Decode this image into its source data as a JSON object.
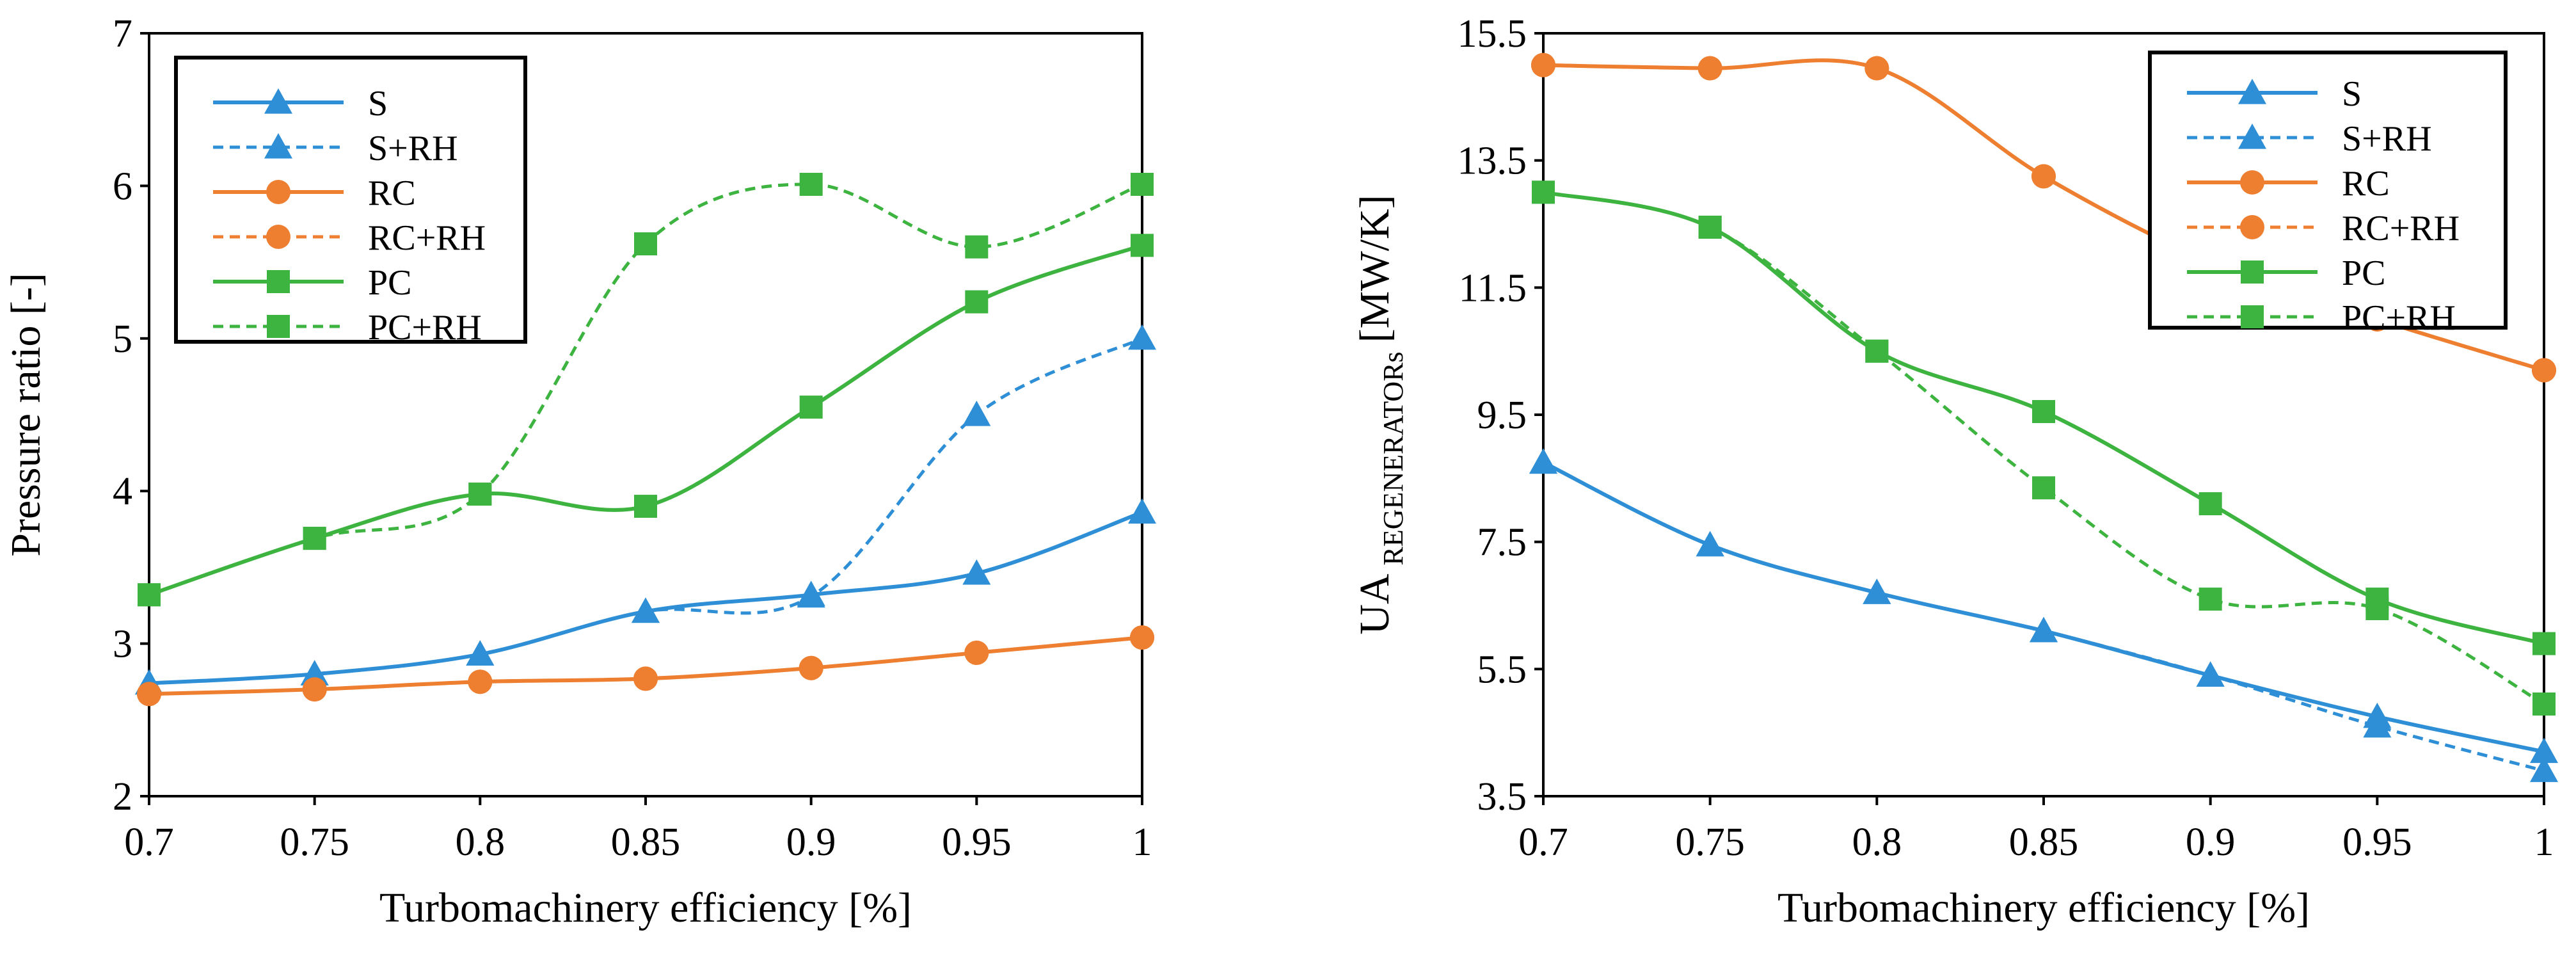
{
  "chart_data": [
    {
      "type": "line",
      "title": "",
      "xlabel": "Turbomachinery efficiency [%]",
      "ylabel": "Pressure ratio [-]",
      "x": [
        0.7,
        0.75,
        0.8,
        0.85,
        0.9,
        0.95,
        1
      ],
      "x_tick_labels": [
        "0.7",
        "0.75",
        "0.8",
        "0.85",
        "0.9",
        "0.95",
        "1"
      ],
      "xlim": [
        0.7,
        1
      ],
      "ylim": [
        2,
        7
      ],
      "y_ticks": [
        2,
        3,
        4,
        5,
        6,
        7
      ],
      "y_tick_labels": [
        "2",
        "3",
        "4",
        "5",
        "6",
        "7"
      ],
      "grid": false,
      "legend_position": "top-left",
      "series": [
        {
          "name": "S",
          "color": "#2E8FD6",
          "marker": "triangle",
          "dashed": false,
          "values": [
            2.74,
            2.8,
            2.93,
            3.21,
            3.32,
            3.46,
            3.86
          ]
        },
        {
          "name": "S+RH",
          "color": "#2E8FD6",
          "marker": "triangle",
          "dashed": true,
          "values": [
            2.74,
            2.8,
            2.93,
            3.21,
            3.31,
            4.5,
            5.0
          ]
        },
        {
          "name": "RC",
          "color": "#EE7E30",
          "marker": "circle",
          "dashed": false,
          "values": [
            2.67,
            2.7,
            2.75,
            2.77,
            2.84,
            2.94,
            3.04
          ]
        },
        {
          "name": "RC+RH",
          "color": "#EE7E30",
          "marker": "circle",
          "dashed": true,
          "values": [
            2.67,
            2.7,
            2.75,
            2.77,
            2.84,
            2.94,
            3.04
          ]
        },
        {
          "name": "PC",
          "color": "#3DB340",
          "marker": "square",
          "dashed": false,
          "values": [
            3.32,
            3.69,
            3.98,
            3.9,
            4.55,
            5.24,
            5.61
          ]
        },
        {
          "name": "PC+RH",
          "color": "#3DB340",
          "marker": "square",
          "dashed": true,
          "values": [
            3.32,
            3.69,
            3.98,
            5.62,
            6.01,
            5.6,
            6.01
          ]
        }
      ]
    },
    {
      "type": "line",
      "title": "",
      "xlabel": "Turbomachinery efficiency [%]",
      "ylabel_main": "UA",
      "ylabel_sub": "REGENERATORs",
      "ylabel_unit": "[MW/K]",
      "x": [
        0.7,
        0.75,
        0.8,
        0.85,
        0.9,
        0.95,
        1
      ],
      "x_tick_labels": [
        "0.7",
        "0.75",
        "0.8",
        "0.85",
        "0.9",
        "0.95",
        "1"
      ],
      "xlim": [
        0.7,
        1
      ],
      "ylim": [
        3.5,
        15.5
      ],
      "y_ticks": [
        3.5,
        5.5,
        7.5,
        9.5,
        11.5,
        13.5,
        15.5
      ],
      "y_tick_labels": [
        "3.5",
        "5.5",
        "7.5",
        "9.5",
        "11.5",
        "13.5",
        "15.5"
      ],
      "grid": false,
      "legend_position": "top-right",
      "series": [
        {
          "name": "S",
          "color": "#2E8FD6",
          "marker": "triangle",
          "dashed": false,
          "values": [
            8.75,
            7.45,
            6.7,
            6.1,
            5.4,
            4.75,
            4.2
          ]
        },
        {
          "name": "S+RH",
          "color": "#2E8FD6",
          "marker": "triangle",
          "dashed": true,
          "values": [
            8.75,
            7.45,
            6.7,
            6.1,
            5.4,
            4.6,
            3.9
          ]
        },
        {
          "name": "RC",
          "color": "#EE7E30",
          "marker": "circle",
          "dashed": false,
          "values": [
            15.0,
            14.95,
            14.95,
            13.25,
            11.9,
            11.0,
            10.2
          ]
        },
        {
          "name": "RC+RH",
          "color": "#EE7E30",
          "marker": "circle",
          "dashed": true,
          "values": [
            15.0,
            14.95,
            14.95,
            13.25,
            11.9,
            11.0,
            10.2
          ]
        },
        {
          "name": "PC",
          "color": "#3DB340",
          "marker": "square",
          "dashed": false,
          "values": [
            13.0,
            12.45,
            10.5,
            9.55,
            8.1,
            6.6,
            5.9
          ]
        },
        {
          "name": "PC+RH",
          "color": "#3DB340",
          "marker": "square",
          "dashed": true,
          "values": [
            13.0,
            12.45,
            10.5,
            8.35,
            6.6,
            6.45,
            4.95
          ]
        }
      ]
    }
  ]
}
